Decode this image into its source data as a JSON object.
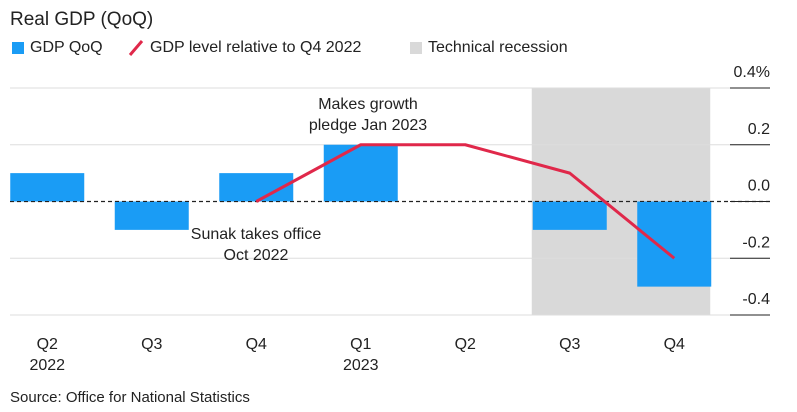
{
  "chart_data": {
    "type": "bar",
    "title": "Real GDP (QoQ)",
    "categories": [
      "Q2\n2022",
      "Q3",
      "Q4",
      "Q1\n2023",
      "Q2",
      "Q3",
      "Q4"
    ],
    "series": [
      {
        "name": "GDP QoQ",
        "type": "bar",
        "color": "#1a9cf5",
        "values": [
          0.1,
          -0.1,
          0.1,
          0.2,
          0,
          -0.1,
          -0.3
        ]
      },
      {
        "name": "GDP level relative to Q4 2022",
        "type": "line",
        "color": "#e0284a",
        "values": [
          null,
          null,
          0,
          0.2,
          0.2,
          0.1,
          -0.2
        ]
      }
    ],
    "recession": {
      "name": "Technical recession",
      "color": "#d9d9d9",
      "start": 5,
      "end": 6
    },
    "ylim": [
      -0.4,
      0.4
    ],
    "yticks": [
      {
        "value": 0.4,
        "label": "0.4%"
      },
      0.2,
      {
        "value": 0,
        "label": "0.0"
      },
      -0.2,
      -0.4
    ],
    "annotations": [
      {
        "text": "Makes growth\npledge Jan 2023",
        "category": 3
      },
      {
        "text": "Sunak takes office\nOct 2022",
        "category": 2
      }
    ],
    "source": "Source: Office for National Statistics",
    "grid": true
  }
}
